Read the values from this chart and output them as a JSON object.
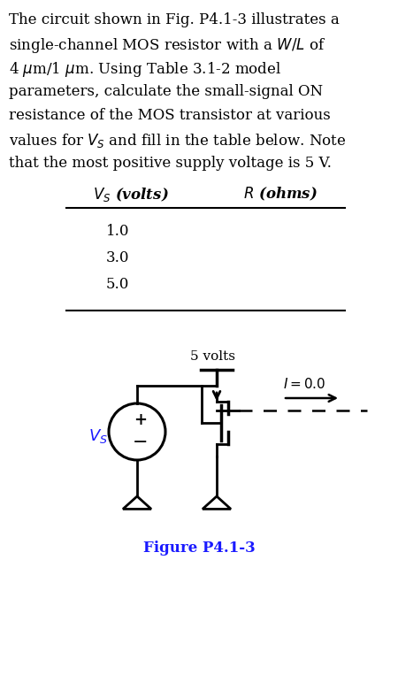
{
  "para_lines": [
    "The circuit shown in Fig. P4.1-3 illustrates a",
    "single-channel MOS resistor with a $W\\!/\\!L$ of",
    "4  μm/1  μm.  Using  Table 3.1-2  model",
    "parameters, calculate the small-signal  ON",
    "resistance of the MOS transistor at various",
    "values for $V_S$ and fill in the table below. Note",
    "that the most positive supply voltage is 5 V."
  ],
  "table_rows": [
    "1.0",
    "3.0",
    "5.0"
  ],
  "fig_label": "Figure P4.1-3",
  "bg_color": "#ffffff",
  "text_color": "#000000",
  "blue_color": "#1a1aff",
  "fig_label_color": "#1a1aff"
}
